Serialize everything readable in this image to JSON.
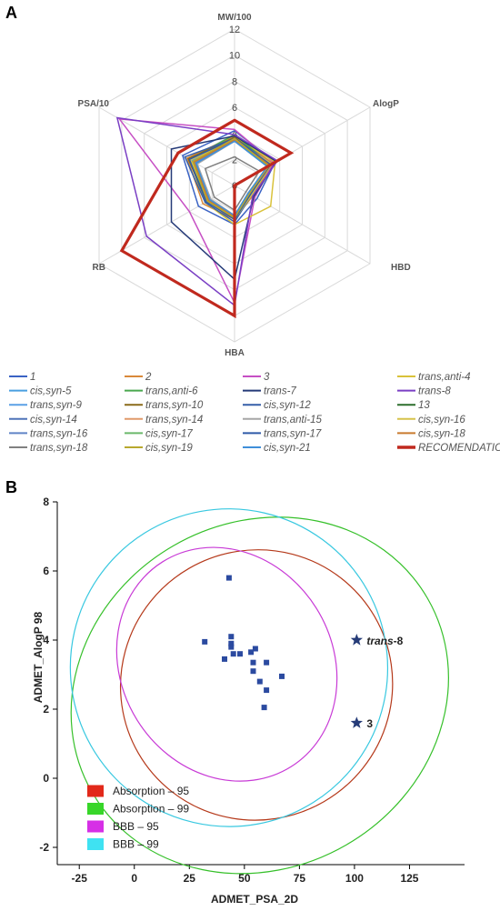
{
  "panels": {
    "a_label": "A",
    "b_label": "B"
  },
  "chart_data": [
    {
      "type": "radar",
      "axes": [
        "MW/100",
        "AlogP",
        "HBD",
        "HBA",
        "RB",
        "PSA/10"
      ],
      "radial_ticks": [
        "0",
        "2",
        "4",
        "6",
        "8",
        "10",
        "12"
      ],
      "rmax": 12,
      "grid": true,
      "series": [
        {
          "name": "1",
          "color": "#3b63c4",
          "width": 1.5,
          "values": [
            4.2,
            3.6,
            2.0,
            3.0,
            3.2,
            4.6
          ]
        },
        {
          "name": "2",
          "color": "#d9893a",
          "width": 1.5,
          "values": [
            3.8,
            3.4,
            1.6,
            2.6,
            2.8,
            4.2
          ]
        },
        {
          "name": "3",
          "color": "#c64fc4",
          "width": 1.5,
          "values": [
            4.3,
            3.5,
            1.8,
            9.0,
            4.0,
            10.2
          ]
        },
        {
          "name": "trans,anti-4",
          "color": "#d9c23a",
          "width": 1.5,
          "values": [
            3.7,
            3.6,
            3.2,
            3.0,
            2.6,
            4.0
          ]
        },
        {
          "name": "cis,syn-5",
          "color": "#4a9fe0",
          "width": 1.5,
          "values": [
            3.6,
            3.1,
            1.2,
            2.4,
            2.3,
            3.8
          ]
        },
        {
          "name": "trans,anti-6",
          "color": "#4aa84f",
          "width": 1.5,
          "values": [
            3.9,
            3.2,
            1.4,
            2.6,
            2.4,
            4.0
          ]
        },
        {
          "name": "trans-7",
          "color": "#253a78",
          "width": 1.5,
          "values": [
            3.8,
            3.7,
            1.7,
            7.2,
            5.6,
            5.6
          ]
        },
        {
          "name": "trans-8",
          "color": "#7a3fc4",
          "width": 1.5,
          "values": [
            3.9,
            3.8,
            1.6,
            9.2,
            7.8,
            10.4
          ]
        },
        {
          "name": "trans,syn-9",
          "color": "#5aa0e6",
          "width": 1.5,
          "values": [
            3.5,
            3.0,
            1.3,
            2.5,
            2.3,
            3.6
          ]
        },
        {
          "name": "trans,syn-10",
          "color": "#8a6a1a",
          "width": 1.5,
          "values": [
            3.7,
            3.2,
            1.4,
            2.6,
            2.5,
            4.1
          ]
        },
        {
          "name": "cis,syn-12",
          "color": "#355fa8",
          "width": 1.5,
          "values": [
            3.6,
            3.3,
            1.5,
            2.8,
            2.6,
            4.4
          ]
        },
        {
          "name": "13",
          "color": "#2d6e2d",
          "width": 1.5,
          "values": [
            3.6,
            2.9,
            1.3,
            2.5,
            2.2,
            3.5
          ]
        },
        {
          "name": "cis,syn-14",
          "color": "#4f73b8",
          "width": 1.5,
          "values": [
            3.5,
            3.0,
            1.2,
            2.4,
            2.3,
            3.4
          ]
        },
        {
          "name": "trans,syn-14",
          "color": "#e09a6a",
          "width": 1.5,
          "values": [
            3.6,
            3.1,
            1.3,
            2.5,
            2.4,
            3.7
          ]
        },
        {
          "name": "trans,anti-15",
          "color": "#a6a6a6",
          "width": 1.5,
          "values": [
            3.4,
            3.0,
            1.2,
            2.3,
            2.1,
            3.3
          ]
        },
        {
          "name": "cis,syn-16",
          "color": "#d6c24a",
          "width": 1.5,
          "values": [
            3.5,
            3.3,
            1.5,
            2.6,
            2.3,
            3.9
          ]
        },
        {
          "name": "trans,syn-16",
          "color": "#5f84c6",
          "width": 1.5,
          "values": [
            3.4,
            2.9,
            1.2,
            2.4,
            2.2,
            3.5
          ]
        },
        {
          "name": "cis,syn-17",
          "color": "#6ab86a",
          "width": 1.5,
          "values": [
            3.5,
            3.0,
            1.3,
            2.5,
            2.3,
            3.6
          ]
        },
        {
          "name": "trans,syn-17",
          "color": "#2e5aa8",
          "width": 1.5,
          "values": [
            3.6,
            3.2,
            1.4,
            2.6,
            2.5,
            4.0
          ]
        },
        {
          "name": "cis,syn-18",
          "color": "#c97a2e",
          "width": 1.5,
          "values": [
            3.5,
            3.1,
            1.3,
            2.4,
            2.3,
            3.6
          ]
        },
        {
          "name": "trans,syn-18",
          "color": "#808080",
          "width": 1.5,
          "values": [
            2.2,
            2.2,
            1.0,
            1.9,
            1.8,
            2.6
          ]
        },
        {
          "name": "cis,syn-19",
          "color": "#b8a82e",
          "width": 1.5,
          "values": [
            3.6,
            3.0,
            1.3,
            2.5,
            2.4,
            3.7
          ]
        },
        {
          "name": "cis,syn-21",
          "color": "#3f8fd9",
          "width": 1.5,
          "values": [
            3.4,
            2.9,
            1.2,
            2.3,
            2.2,
            3.4
          ]
        },
        {
          "name": "RECOMENDATION",
          "color": "#c0291e",
          "width": 3.2,
          "values": [
            5.0,
            5.0,
            0.0,
            10.0,
            10.0,
            5.0
          ]
        }
      ]
    },
    {
      "type": "scatter",
      "xlabel": "ADMET_PSA_2D",
      "ylabel": "ADMET_AlogP 98",
      "xlim": [
        -35,
        150
      ],
      "ylim": [
        -2.5,
        8
      ],
      "xticks": [
        "-25",
        "0",
        "25",
        "50",
        "75",
        "100",
        "125"
      ],
      "yticks": [
        "-2",
        "0",
        "2",
        "4",
        "6",
        "8"
      ],
      "ellipses": [
        {
          "name": "Absorption – 95",
          "color": "#b5391a",
          "cx": 55.5,
          "cy": 2.7,
          "rx": 62,
          "ry": 3.9,
          "rot": -30
        },
        {
          "name": "Absorption – 99",
          "color": "#36c02a",
          "cx": 57,
          "cy": 2.4,
          "rx": 88,
          "ry": 5.0,
          "rot": -30
        },
        {
          "name": "BBB – 95",
          "color": "#c83ad6",
          "cx": 42,
          "cy": 3.3,
          "rx": 48,
          "ry": 3.5,
          "rot": -32
        },
        {
          "name": "BBB – 99",
          "color": "#38c8e0",
          "cx": 43,
          "cy": 3.2,
          "rx": 72,
          "ry": 4.6,
          "rot": -32
        }
      ],
      "points": [
        {
          "x": 32,
          "y": 3.95
        },
        {
          "x": 44,
          "y": 4.1
        },
        {
          "x": 44,
          "y": 3.9
        },
        {
          "x": 44,
          "y": 3.8
        },
        {
          "x": 45,
          "y": 3.6
        },
        {
          "x": 41,
          "y": 3.45
        },
        {
          "x": 48,
          "y": 3.6
        },
        {
          "x": 53,
          "y": 3.65
        },
        {
          "x": 55,
          "y": 3.75
        },
        {
          "x": 54,
          "y": 3.35
        },
        {
          "x": 60,
          "y": 3.35
        },
        {
          "x": 54,
          "y": 3.1
        },
        {
          "x": 57,
          "y": 2.8
        },
        {
          "x": 60,
          "y": 2.55
        },
        {
          "x": 67,
          "y": 2.95
        },
        {
          "x": 59,
          "y": 2.05
        },
        {
          "x": 43,
          "y": 5.8
        }
      ],
      "highlights": [
        {
          "label": "trans-8",
          "x": 101,
          "y": 4.0,
          "italic_part": "trans",
          "rest": "-8"
        },
        {
          "label": "3",
          "x": 101,
          "y": 1.6,
          "italic_part": "",
          "rest": "3"
        }
      ],
      "legend": [
        "Absorption – 95",
        "Absorption – 99",
        "BBB – 95",
        "BBB – 99"
      ],
      "legend_colors": [
        "#e2291a",
        "#37d629",
        "#d62fe6",
        "#3fe2f2"
      ]
    }
  ]
}
